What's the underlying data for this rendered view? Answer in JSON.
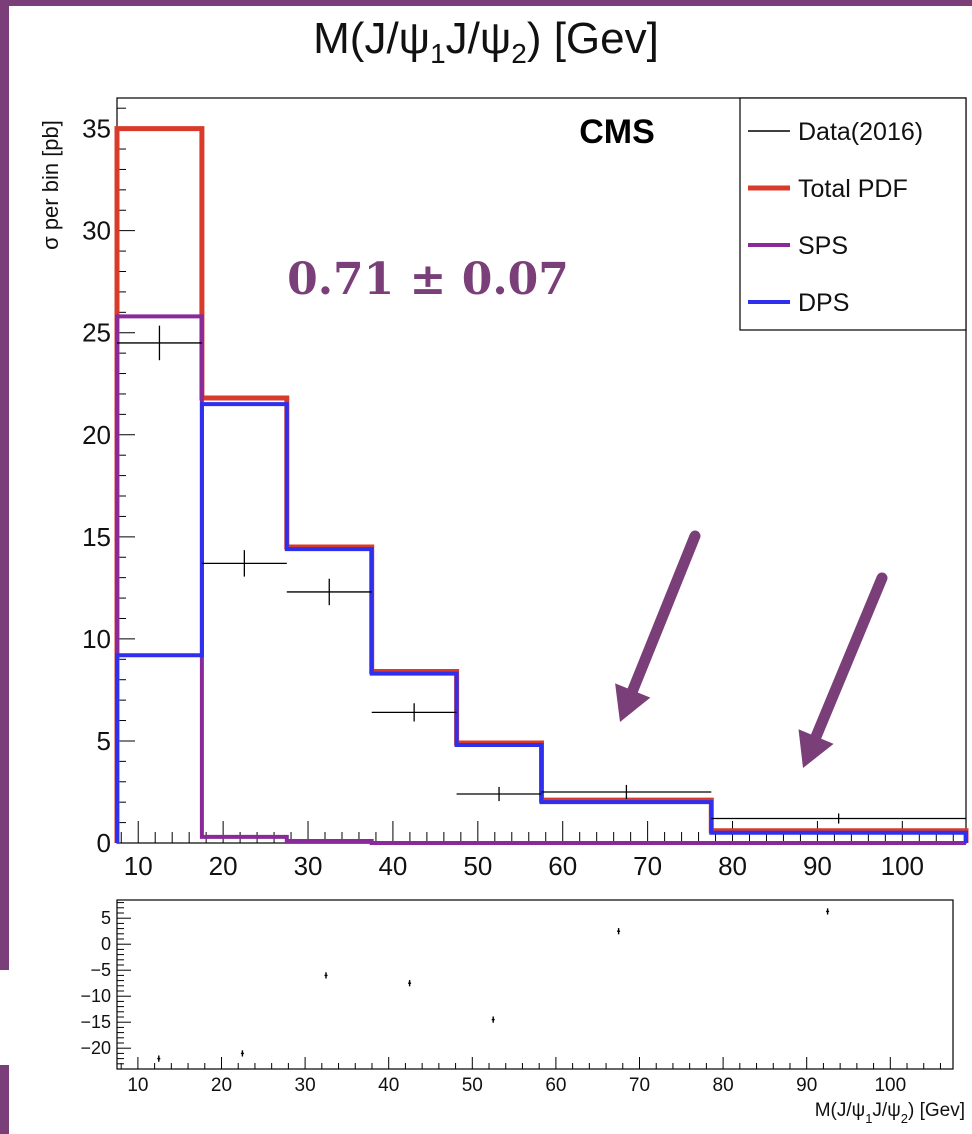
{
  "title": {
    "pre": "M(J/ψ",
    "s1": "1",
    "mid": "J/ψ",
    "s2": "2",
    "post": ") [Gev]"
  },
  "colors": {
    "frame_accent": "#7a3f78",
    "data": "#000000",
    "total_pdf": "#d93b2b",
    "sps": "#8a2a9a",
    "dps": "#2f2fee",
    "arrow": "#7a3f78",
    "annotation": "#7a3f78"
  },
  "annotations": {
    "experiment": "CMS",
    "fraction": "0.71 ± 0.07"
  },
  "x_axis_label": {
    "pre": "M(J/ψ",
    "s1": "1",
    "mid": "J/ψ",
    "s2": "2",
    "post": ") [Gev]"
  },
  "chart_data": [
    {
      "type": "line",
      "step": true,
      "ylabel": "σ per bin [pb]",
      "xlim": [
        7.5,
        107.5
      ],
      "ylim": [
        0,
        36.5
      ],
      "xticks": [
        10,
        20,
        30,
        40,
        50,
        60,
        70,
        80,
        90,
        100
      ],
      "yticks": [
        0,
        5,
        10,
        15,
        20,
        25,
        30,
        35
      ],
      "bin_edges": [
        7.5,
        17.5,
        27.5,
        37.5,
        47.5,
        57.5,
        77.5,
        107.5
      ],
      "legend": {
        "position": "top-right",
        "entries": [
          "Data(2016)",
          "Total PDF",
          "SPS",
          "DPS"
        ]
      },
      "series": [
        {
          "name": "Total PDF",
          "values": [
            35.0,
            21.8,
            14.5,
            8.4,
            4.9,
            2.1,
            0.6
          ]
        },
        {
          "name": "SPS",
          "values": [
            25.8,
            0.3,
            0.1,
            0.0,
            0.0,
            0.0,
            0.0
          ]
        },
        {
          "name": "DPS",
          "values": [
            9.2,
            21.5,
            14.4,
            8.3,
            4.8,
            2.0,
            0.5
          ]
        },
        {
          "name": "Data(2016)",
          "x": [
            12.5,
            22.5,
            32.5,
            42.5,
            52.5,
            67.5,
            92.5
          ],
          "y": [
            24.5,
            13.7,
            12.3,
            6.4,
            2.4,
            2.5,
            1.2
          ],
          "xerr_low": [
            5,
            5,
            5,
            5,
            5,
            10,
            15
          ],
          "xerr_high": [
            5,
            5,
            5,
            5,
            5,
            10,
            15
          ],
          "yerr": [
            0.7,
            0.5,
            0.5,
            0.3,
            0.2,
            0.2,
            0.1
          ]
        }
      ],
      "arrows_point_to": [
        67.5,
        92.5
      ]
    },
    {
      "type": "scatter",
      "xlim": [
        7.5,
        107.5
      ],
      "ylim": [
        -24,
        8.5
      ],
      "xticks": [
        10,
        20,
        30,
        40,
        50,
        60,
        70,
        80,
        90,
        100
      ],
      "yticks": [
        5,
        0,
        -5,
        -10,
        -15,
        -20
      ],
      "ytick_labels": [
        "5",
        "0",
        "−5",
        "−10",
        "−15",
        "−20"
      ],
      "x": [
        12.5,
        22.5,
        32.5,
        42.5,
        52.5,
        67.5,
        92.5
      ],
      "y": [
        -22,
        -21,
        -6,
        -7.5,
        -14.5,
        2.5,
        6.3
      ],
      "yerr": [
        0.6,
        0.6,
        0.6,
        0.6,
        0.6,
        0.6,
        0.6
      ]
    }
  ]
}
